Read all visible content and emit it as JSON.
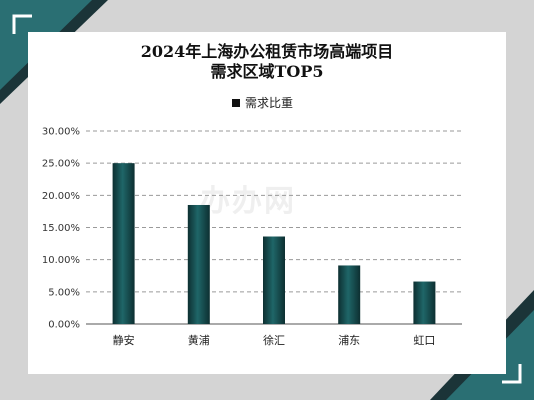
{
  "chart_data": {
    "type": "bar",
    "title_lines": [
      "2024年上海办公租赁市场高端项目",
      "需求区域TOP5"
    ],
    "categories": [
      "静安",
      "黄浦",
      "徐汇",
      "浦东",
      "虹口"
    ],
    "series": [
      {
        "name": "需求比重",
        "values": [
          25.0,
          18.5,
          13.6,
          9.1,
          6.6
        ]
      }
    ],
    "ylim": [
      0,
      30
    ],
    "yticks": [
      "0.00%",
      "5.00%",
      "10.00%",
      "15.00%",
      "20.00%",
      "25.00%",
      "30.00%"
    ],
    "grid": true,
    "legend_position": "top-center"
  },
  "watermark": "办办网",
  "colors": {
    "bar": "#1f6668",
    "bar_dark": "#0d2f31",
    "corner_teal": "#2a6f73",
    "corner_dark": "#1b3438"
  }
}
